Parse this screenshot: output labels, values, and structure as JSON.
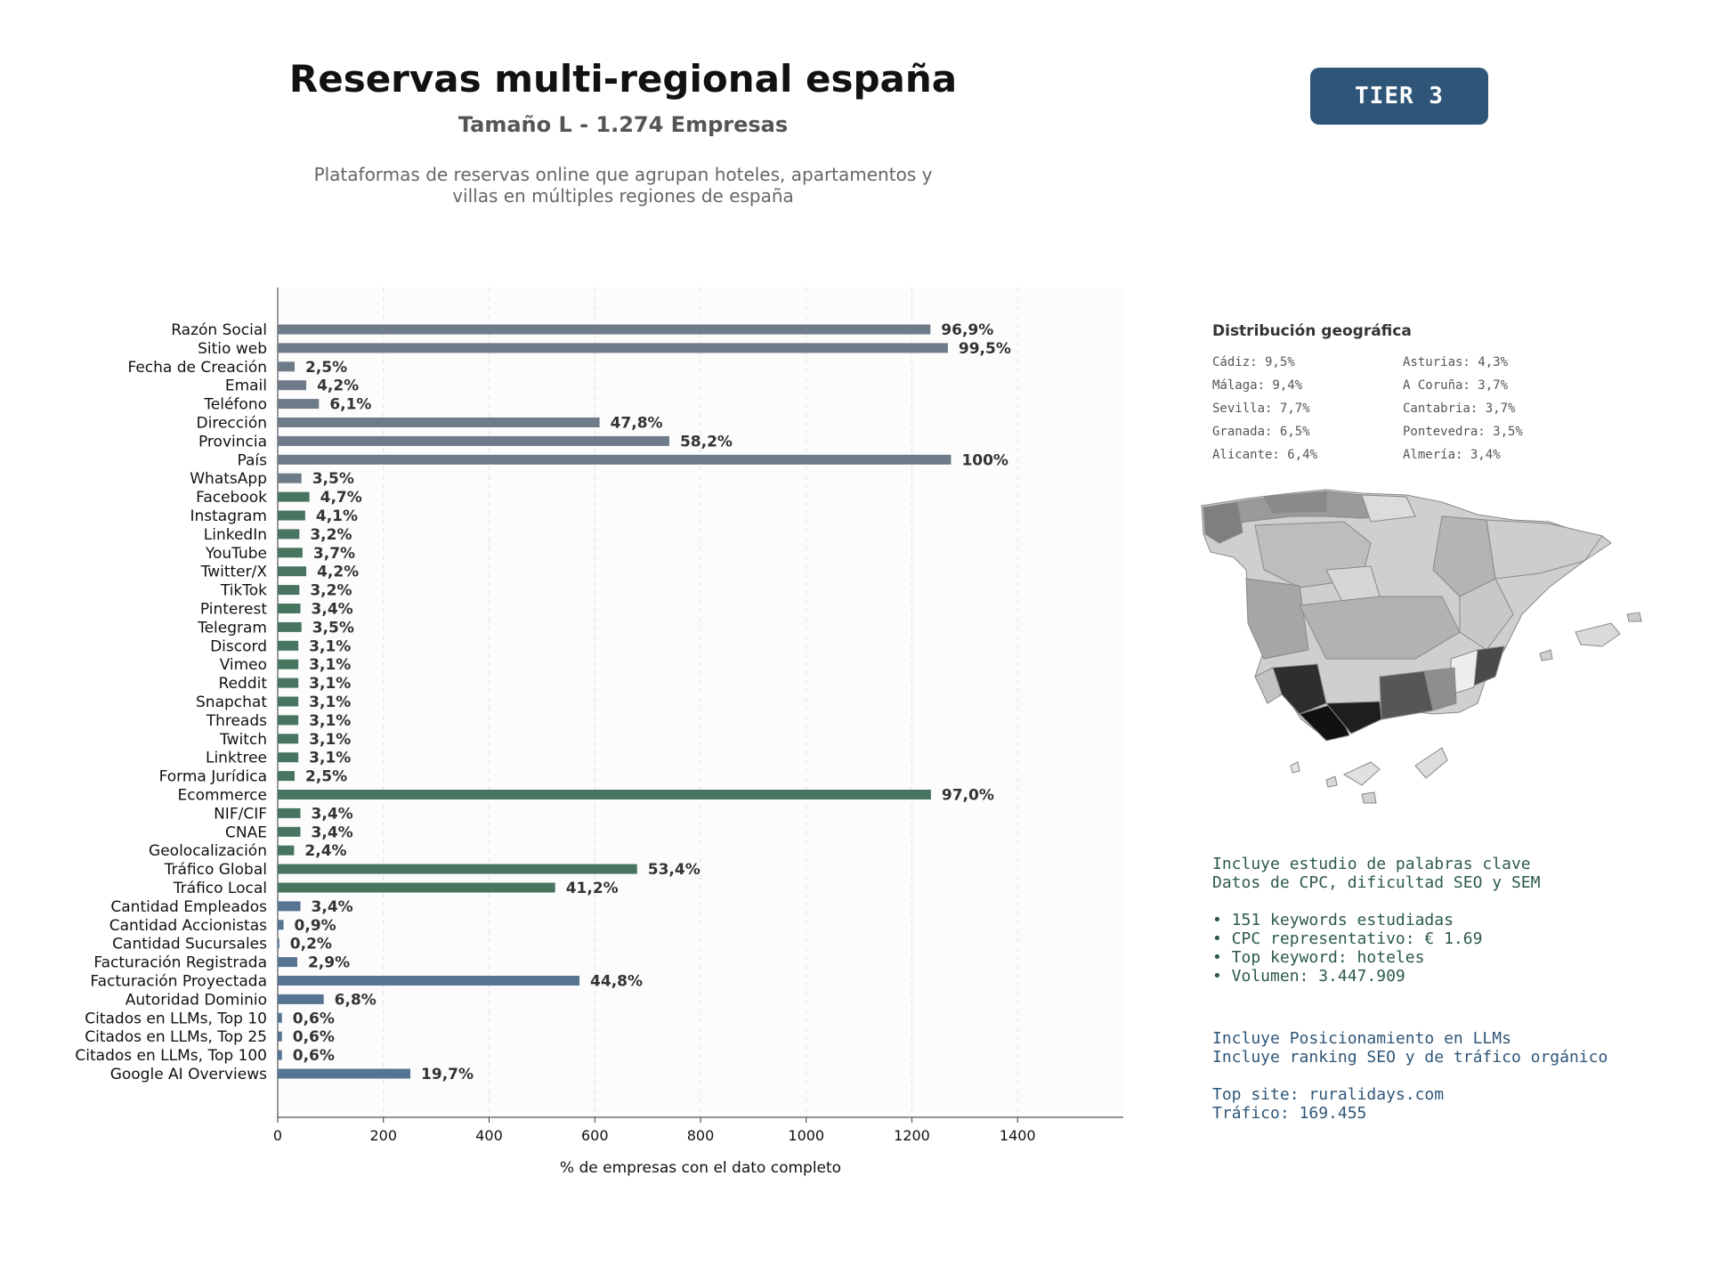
{
  "header": {
    "title": "Reservas multi-regional españa",
    "subtitle": "Tamaño L - 1.274 Empresas",
    "description_line1": "Plataformas de reservas online que agrupan hoteles, apartamentos y",
    "description_line2": "villas en múltiples regiones de españa",
    "tier_label": "TIER 3"
  },
  "colors": {
    "gray_bars": "#6e7b88",
    "green_bars": "#477560",
    "blue_bars": "#577493",
    "badge": "#2f5678"
  },
  "chart_data": {
    "type": "bar",
    "orientation": "horizontal",
    "xlabel": "% de empresas con el dato completo",
    "xlim": [
      0,
      1600
    ],
    "xticks": [
      0,
      200,
      400,
      600,
      800,
      1000,
      1200,
      1400
    ],
    "grid": "vertical dashed",
    "categories": [
      "Razón Social",
      "Sitio web",
      "Fecha de Creación",
      "Email",
      "Teléfono",
      "Dirección",
      "Provincia",
      "País",
      "WhatsApp",
      "Facebook",
      "Instagram",
      "LinkedIn",
      "YouTube",
      "Twitter/X",
      "TikTok",
      "Pinterest",
      "Telegram",
      "Discord",
      "Vimeo",
      "Reddit",
      "Snapchat",
      "Threads",
      "Twitch",
      "Linktree",
      "Forma Jurídica",
      "Ecommerce",
      "NIF/CIF",
      "CNAE",
      "Geolocalización",
      "Tráfico Global",
      "Tráfico Local",
      "Cantidad Empleados",
      "Cantidad Accionistas",
      "Cantidad Sucursales",
      "Facturación Registrada",
      "Facturación Proyectada",
      "Autoridad Dominio",
      "Citados en LLMs, Top 10",
      "Citados en LLMs, Top 25",
      "Citados en LLMs, Top 100",
      "Google AI Overviews"
    ],
    "values": [
      1235,
      1268,
      32,
      54,
      78,
      609,
      741,
      1274,
      45,
      60,
      52,
      41,
      47,
      54,
      41,
      43,
      45,
      39,
      39,
      39,
      39,
      39,
      39,
      39,
      32,
      1236,
      43,
      43,
      31,
      680,
      525,
      43,
      11,
      3,
      37,
      571,
      87,
      8,
      8,
      8,
      251
    ],
    "labels": [
      "96,9%",
      "99,5%",
      "2,5%",
      "4,2%",
      "6,1%",
      "47,8%",
      "58,2%",
      "100%",
      "3,5%",
      "4,7%",
      "4,1%",
      "3,2%",
      "3,7%",
      "4,2%",
      "3,2%",
      "3,4%",
      "3,5%",
      "3,1%",
      "3,1%",
      "3,1%",
      "3,1%",
      "3,1%",
      "3,1%",
      "3,1%",
      "2,5%",
      "97,0%",
      "3,4%",
      "3,4%",
      "2,4%",
      "53,4%",
      "41,2%",
      "3,4%",
      "0,9%",
      "0,2%",
      "2,9%",
      "44,8%",
      "6,8%",
      "0,6%",
      "0,6%",
      "0,6%",
      "19,7%"
    ],
    "groups": [
      "gray",
      "gray",
      "gray",
      "gray",
      "gray",
      "gray",
      "gray",
      "gray",
      "gray",
      "green",
      "green",
      "green",
      "green",
      "green",
      "green",
      "green",
      "green",
      "green",
      "green",
      "green",
      "green",
      "green",
      "green",
      "green",
      "green",
      "green",
      "green",
      "green",
      "green",
      "green",
      "green",
      "blue",
      "blue",
      "blue",
      "blue",
      "blue",
      "blue",
      "blue",
      "blue",
      "blue",
      "blue"
    ]
  },
  "geo": {
    "title": "Distribución geográfica",
    "items": [
      "Cádiz: 9,5%",
      "Asturias: 4,3%",
      "Málaga: 9,4%",
      "A Coruña: 3,7%",
      "Sevilla: 7,7%",
      "Cantabria: 3,7%",
      "Granada: 6,5%",
      "Pontevedra: 3,5%",
      "Alicante: 6,4%",
      "Almería: 3,4%"
    ]
  },
  "keywords": {
    "line1": "Incluye estudio de palabras clave",
    "line2": "Datos de CPC, dificultad SEO y SEM",
    "bullet1": "• 151 keywords estudiadas",
    "bullet2": "• CPC representativo: € 1.69",
    "bullet3": "• Top keyword: hoteles",
    "bullet4": "• Volumen: 3.447.909"
  },
  "llm": {
    "line1": "Incluye Posicionamiento en LLMs",
    "line2": "Incluye ranking SEO y de tráfico orgánico",
    "top_site": "Top site: ruralidays.com",
    "traffic": "Tráfico: 169.455"
  }
}
